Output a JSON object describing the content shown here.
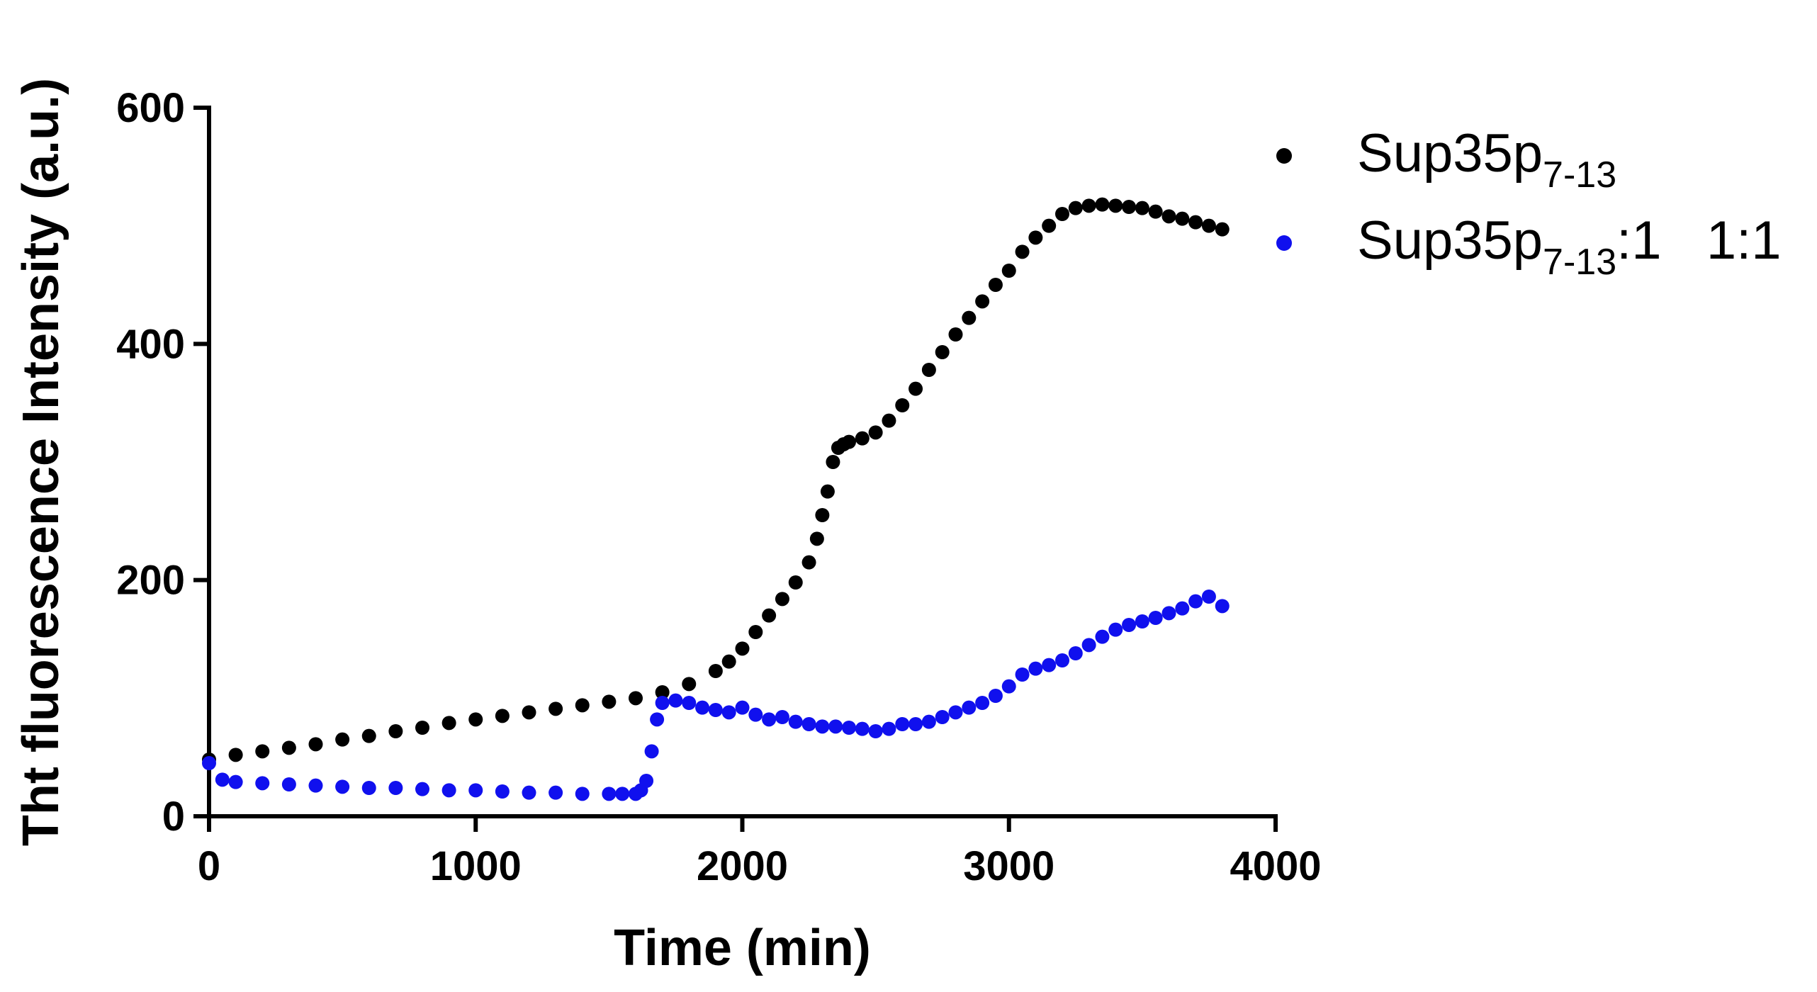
{
  "chart_data": {
    "type": "scatter",
    "title": "",
    "xlabel": "Time (min)",
    "ylabel": "Tht fluorescence Intensity (a.u.)",
    "xlim": [
      0,
      4000
    ],
    "ylim": [
      0,
      600
    ],
    "xticks": [
      0,
      1000,
      2000,
      3000,
      4000
    ],
    "yticks": [
      0,
      200,
      400,
      600
    ],
    "xtick_labels": [
      "0",
      "1000",
      "2000",
      "3000",
      "4000"
    ],
    "ytick_labels": [
      "0",
      "200",
      "400",
      "600"
    ],
    "grid": false,
    "legend_position": "top-right",
    "series": [
      {
        "name": "Sup35p7-13",
        "label_main": "Sup35p",
        "label_sub": "7-13",
        "label_suffix": "",
        "color": "#000000",
        "x": [
          0,
          100,
          200,
          300,
          400,
          500,
          600,
          700,
          800,
          900,
          1000,
          1100,
          1200,
          1300,
          1400,
          1500,
          1600,
          1700,
          1800,
          1900,
          1950,
          2000,
          2050,
          2100,
          2150,
          2200,
          2250,
          2280,
          2300,
          2320,
          2340,
          2360,
          2380,
          2400,
          2450,
          2500,
          2550,
          2600,
          2650,
          2700,
          2750,
          2800,
          2850,
          2900,
          2950,
          3000,
          3050,
          3100,
          3150,
          3200,
          3250,
          3300,
          3350,
          3400,
          3450,
          3500,
          3550,
          3600,
          3650,
          3700,
          3750,
          3800
        ],
        "y": [
          48,
          52,
          55,
          58,
          61,
          65,
          68,
          72,
          75,
          79,
          82,
          85,
          88,
          91,
          94,
          97,
          100,
          105,
          112,
          123,
          131,
          142,
          156,
          170,
          184,
          198,
          215,
          235,
          255,
          275,
          300,
          312,
          315,
          317,
          320,
          325,
          335,
          348,
          362,
          378,
          393,
          408,
          422,
          436,
          450,
          462,
          478,
          490,
          500,
          510,
          515,
          517,
          518,
          517,
          516,
          515,
          512,
          508,
          506,
          503,
          500,
          497
        ]
      },
      {
        "name": "Sup35p7-13:1 1:1",
        "label_main": "Sup35p",
        "label_sub": "7-13",
        "label_suffix": ":1   1:1",
        "color": "#1010ee",
        "x": [
          0,
          50,
          100,
          200,
          300,
          400,
          500,
          600,
          700,
          800,
          900,
          1000,
          1100,
          1200,
          1300,
          1400,
          1500,
          1550,
          1600,
          1620,
          1640,
          1660,
          1680,
          1700,
          1750,
          1800,
          1850,
          1900,
          1950,
          2000,
          2050,
          2100,
          2150,
          2200,
          2250,
          2300,
          2350,
          2400,
          2450,
          2500,
          2550,
          2600,
          2650,
          2700,
          2750,
          2800,
          2850,
          2900,
          2950,
          3000,
          3050,
          3100,
          3150,
          3200,
          3250,
          3300,
          3350,
          3400,
          3450,
          3500,
          3550,
          3600,
          3650,
          3700,
          3750,
          3800
        ],
        "y": [
          45,
          31,
          29,
          28,
          27,
          26,
          25,
          24,
          24,
          23,
          22,
          22,
          21,
          20,
          20,
          19,
          19,
          19,
          19,
          22,
          30,
          55,
          82,
          96,
          98,
          96,
          92,
          90,
          88,
          92,
          86,
          82,
          84,
          80,
          78,
          76,
          76,
          75,
          74,
          72,
          74,
          78,
          78,
          80,
          84,
          88,
          92,
          96,
          102,
          110,
          120,
          125,
          128,
          132,
          138,
          145,
          152,
          158,
          162,
          165,
          168,
          172,
          176,
          182,
          186,
          178
        ]
      }
    ]
  }
}
